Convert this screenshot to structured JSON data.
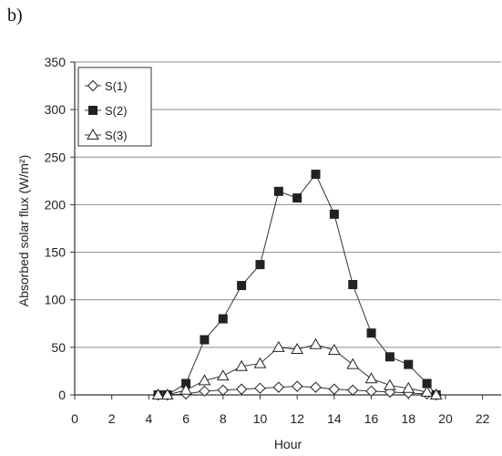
{
  "panel_label": "b)",
  "chart_data": {
    "type": "line",
    "title": "",
    "xlabel": "Hour",
    "ylabel": "Absorbed solar flux (W/m²)",
    "xlim": [
      0,
      23
    ],
    "ylim": [
      0,
      350
    ],
    "xticks": [
      0,
      2,
      4,
      6,
      8,
      10,
      12,
      14,
      16,
      18,
      20,
      22
    ],
    "yticks": [
      0,
      50,
      100,
      150,
      200,
      250,
      300,
      350
    ],
    "grid": "horizontal",
    "legend_position": "top-left",
    "series": [
      {
        "name": "S(1)",
        "marker": "diamond-open",
        "x": [
          4.5,
          5,
          6,
          7,
          8,
          9,
          10,
          11,
          12,
          13,
          14,
          15,
          16,
          17,
          18,
          19,
          19.5
        ],
        "y": [
          0,
          0,
          1,
          4,
          5,
          6,
          7,
          8,
          9,
          8,
          6,
          5,
          4,
          3,
          2,
          1,
          0
        ]
      },
      {
        "name": "S(2)",
        "marker": "square-filled",
        "x": [
          4.5,
          5,
          6,
          7,
          8,
          9,
          10,
          11,
          12,
          13,
          14,
          15,
          16,
          17,
          18,
          19,
          19.5
        ],
        "y": [
          0,
          0,
          12,
          58,
          80,
          115,
          137,
          214,
          207,
          232,
          190,
          116,
          65,
          40,
          32,
          12,
          0
        ]
      },
      {
        "name": "S(3)",
        "marker": "triangle-open",
        "x": [
          4.5,
          5,
          6,
          7,
          8,
          9,
          10,
          11,
          12,
          13,
          14,
          15,
          16,
          17,
          18,
          19,
          19.5
        ],
        "y": [
          0,
          0,
          5,
          15,
          20,
          30,
          33,
          50,
          48,
          53,
          47,
          32,
          17,
          10,
          7,
          3,
          0
        ]
      }
    ]
  }
}
